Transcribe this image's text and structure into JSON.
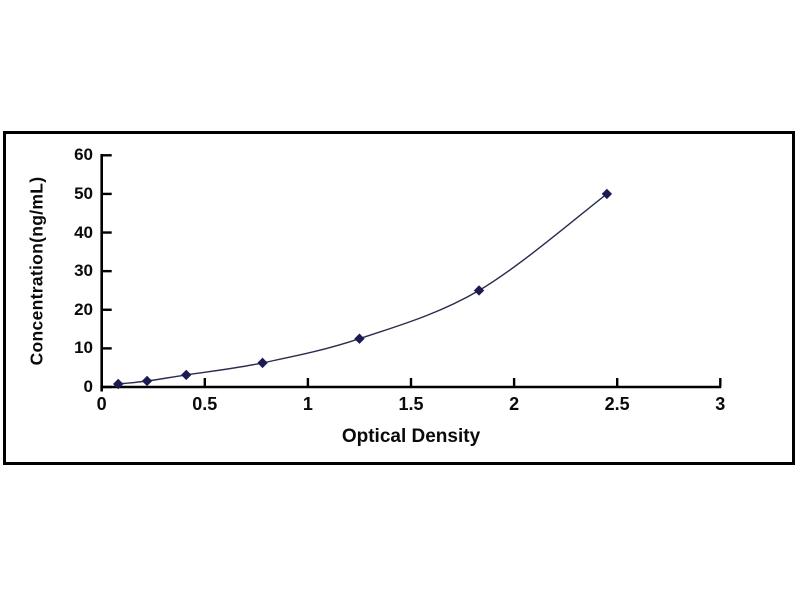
{
  "chart": {
    "ylabel": "Concentration(ng/mL)",
    "xlabel": "Optical Density",
    "x_tick_labels": [
      "0",
      "0.5",
      "1",
      "1.5",
      "2",
      "2.5",
      "3"
    ],
    "y_tick_labels": [
      "0",
      "10",
      "20",
      "30",
      "40",
      "50",
      "60"
    ]
  },
  "chart_data": {
    "type": "scatter",
    "title": "",
    "xlabel": "Optical Density",
    "ylabel": "Concentration(ng/mL)",
    "x": [
      0.08,
      0.22,
      0.41,
      0.78,
      1.25,
      1.83,
      2.45
    ],
    "y": [
      0.78,
      1.56,
      3.13,
      6.25,
      12.5,
      25,
      50
    ],
    "xlim": [
      0,
      3
    ],
    "ylim": [
      0,
      60
    ],
    "x_ticks": [
      0,
      0.5,
      1,
      1.5,
      2,
      2.5,
      3
    ],
    "y_ticks": [
      0,
      10,
      20,
      30,
      40,
      50,
      60
    ],
    "grid": false,
    "legend": null,
    "line_smooth": true,
    "marker": "diamond",
    "marker_color": "#1b1b52",
    "line_color": "#2c2c4e",
    "axis_color": "#000000",
    "frame_color": "#000000"
  }
}
